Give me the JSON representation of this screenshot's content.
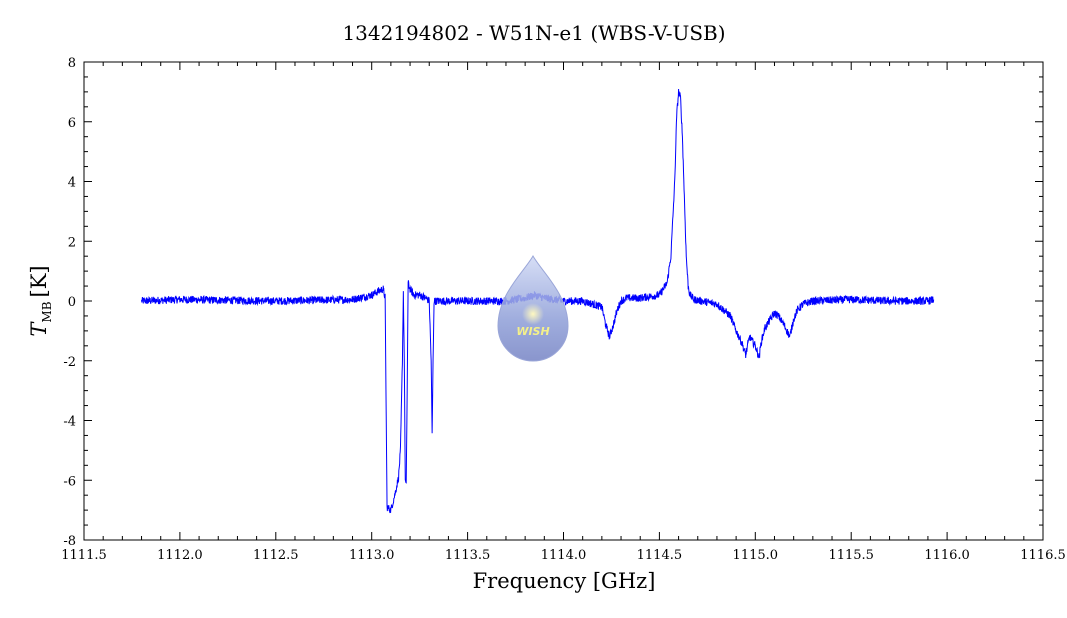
{
  "chart_data": {
    "type": "line",
    "title": "1342194802 - W51N-e1 (WBS-V-USB)",
    "xlabel": "Frequency [GHz]",
    "ylabel_main": "T",
    "ylabel_sub": "MB",
    "ylabel_unit": "[K]",
    "xlim": [
      1111.5,
      1116.5
    ],
    "ylim": [
      -8,
      8
    ],
    "x_ticks": [
      "1111.5",
      "1112.0",
      "1112.5",
      "1113.0",
      "1113.5",
      "1114.0",
      "1114.5",
      "1115.0",
      "1115.5",
      "1116.0",
      "1116.5"
    ],
    "y_ticks": [
      "8",
      "6",
      "4",
      "2",
      "0",
      "-2",
      "-4",
      "-6",
      "-8"
    ],
    "grid": false,
    "series": [
      {
        "color": "#0000ff",
        "x": [
          1111.8,
          1112.0,
          1112.5,
          1112.9,
          1113.0,
          1113.04,
          1113.06,
          1113.07,
          1113.08,
          1113.1,
          1113.12,
          1113.14,
          1113.15,
          1113.16,
          1113.165,
          1113.17,
          1113.175,
          1113.18,
          1113.185,
          1113.19,
          1113.2,
          1113.22,
          1113.25,
          1113.28,
          1113.3,
          1113.31,
          1113.315,
          1113.32,
          1113.325,
          1113.33,
          1113.35,
          1113.5,
          1113.7,
          1113.8,
          1113.85,
          1113.9,
          1114.0,
          1114.1,
          1114.2,
          1114.22,
          1114.24,
          1114.26,
          1114.28,
          1114.3,
          1114.33,
          1114.4,
          1114.5,
          1114.54,
          1114.56,
          1114.58,
          1114.59,
          1114.6,
          1114.61,
          1114.62,
          1114.63,
          1114.64,
          1114.65,
          1114.66,
          1114.68,
          1114.72,
          1114.8,
          1114.87,
          1114.9,
          1114.93,
          1114.95,
          1114.97,
          1115.0,
          1115.02,
          1115.03,
          1115.05,
          1115.08,
          1115.1,
          1115.12,
          1115.15,
          1115.18,
          1115.2,
          1115.22,
          1115.25,
          1115.3,
          1115.5,
          1115.7,
          1115.9,
          1115.93
        ],
        "y": [
          0.0,
          0.05,
          0.0,
          0.05,
          0.2,
          0.35,
          0.4,
          0.1,
          -6.9,
          -7.0,
          -6.5,
          -5.9,
          -5.0,
          -2.0,
          0.3,
          -2.0,
          -6.0,
          -6.2,
          -3.0,
          0.6,
          0.4,
          0.2,
          0.2,
          0.1,
          0.0,
          -2.0,
          -4.5,
          -2.0,
          0.0,
          0.0,
          0.0,
          0.0,
          0.0,
          0.1,
          0.2,
          0.1,
          0.0,
          0.0,
          -0.2,
          -0.8,
          -1.2,
          -0.8,
          -0.3,
          0.0,
          0.1,
          0.1,
          0.2,
          0.6,
          1.5,
          4.0,
          6.2,
          7.0,
          6.8,
          5.5,
          3.5,
          1.5,
          0.5,
          0.2,
          0.05,
          0.0,
          -0.1,
          -0.5,
          -1.0,
          -1.4,
          -1.8,
          -1.2,
          -1.5,
          -1.9,
          -1.4,
          -0.9,
          -0.6,
          -0.4,
          -0.5,
          -0.8,
          -1.2,
          -0.6,
          -0.3,
          -0.1,
          0.0,
          0.05,
          0.0,
          0.0,
          0.05
        ]
      }
    ]
  },
  "watermark": {
    "text": "WISH"
  }
}
